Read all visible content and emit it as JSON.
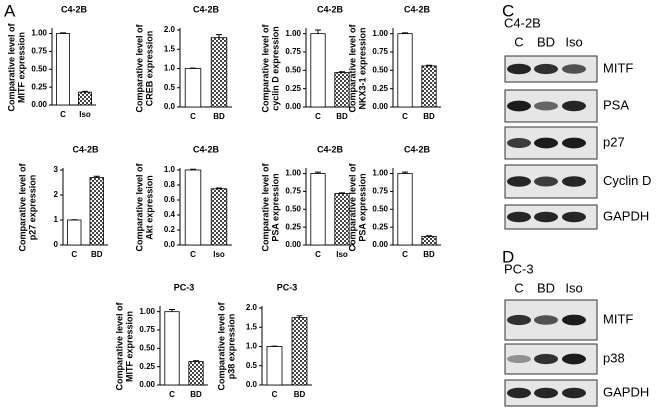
{
  "panels": [
    "A",
    "C",
    "D"
  ],
  "chart_data": [
    {
      "type": "bar",
      "title": "C4-2B",
      "ylabel": [
        "Comparative level of",
        "MITF expression"
      ],
      "categories": [
        "C",
        "Iso"
      ],
      "values": [
        1.0,
        0.18
      ],
      "errors": [
        0.01,
        0.01
      ],
      "colors": [
        "#ffffff",
        "#444444"
      ],
      "ylim": [
        0,
        1.05
      ],
      "yticks": [
        {
          "value": 0,
          "label": "0.00"
        },
        {
          "value": 0.25,
          "label": "0.25"
        },
        {
          "value": 0.5,
          "label": "0.50"
        },
        {
          "value": 0.75,
          "label": "0.75"
        },
        {
          "value": 1,
          "label": "1.00"
        }
      ]
    },
    {
      "type": "bar",
      "title": "C4-2B",
      "ylabel": [
        "Comparative level of",
        "CREB expression"
      ],
      "categories": [
        "C",
        "BD"
      ],
      "values": [
        1.0,
        1.8
      ],
      "errors": [
        0.01,
        0.08
      ],
      "colors": [
        "#ffffff",
        "#444444"
      ],
      "ylim": [
        0,
        2.0
      ],
      "yticks": [
        {
          "value": 0,
          "label": "0.0"
        },
        {
          "value": 0.5,
          "label": "0.5"
        },
        {
          "value": 1,
          "label": "1.0"
        },
        {
          "value": 1.5,
          "label": "1.5"
        },
        {
          "value": 2,
          "label": "2.0"
        }
      ]
    },
    {
      "type": "bar",
      "title": "C4-2B",
      "ylabel": [
        "Comparative level of",
        "cyclin D expression"
      ],
      "categories": [
        "C",
        "BD"
      ],
      "values": [
        1.0,
        0.47
      ],
      "errors": [
        0.05,
        0.01
      ],
      "colors": [
        "#ffffff",
        "#444444"
      ],
      "ylim": [
        0,
        1.05
      ],
      "yticks": [
        {
          "value": 0,
          "label": "0.00"
        },
        {
          "value": 0.25,
          "label": "0.25"
        },
        {
          "value": 0.5,
          "label": "0.50"
        },
        {
          "value": 0.75,
          "label": "0.75"
        },
        {
          "value": 1,
          "label": "1.00"
        }
      ]
    },
    {
      "type": "bar",
      "title": "C4-2B",
      "ylabel": [
        "Comparative level of",
        "NKX3-1 expression"
      ],
      "categories": [
        "C",
        "BD"
      ],
      "values": [
        1.0,
        0.56
      ],
      "errors": [
        0.01,
        0.01
      ],
      "colors": [
        "#ffffff",
        "#444444"
      ],
      "ylim": [
        0,
        1.05
      ],
      "yticks": [
        {
          "value": 0,
          "label": "0.00"
        },
        {
          "value": 0.25,
          "label": "0.25"
        },
        {
          "value": 0.5,
          "label": "0.50"
        },
        {
          "value": 0.75,
          "label": "0.75"
        },
        {
          "value": 1,
          "label": "1.00"
        }
      ]
    },
    {
      "type": "bar",
      "title": "C4-2B",
      "ylabel": [
        "Comparative level of",
        "p27 expression"
      ],
      "categories": [
        "C",
        "BD"
      ],
      "values": [
        1.0,
        2.7
      ],
      "errors": [
        0.01,
        0.05
      ],
      "colors": [
        "#ffffff",
        "#444444"
      ],
      "ylim": [
        0,
        3
      ],
      "yticks": [
        0,
        1,
        2,
        3
      ]
    },
    {
      "type": "bar",
      "title": "C4-2B",
      "ylabel": [
        "Comparative level of",
        "Akt expression"
      ],
      "categories": [
        "C",
        "Iso"
      ],
      "values": [
        1.0,
        0.75
      ],
      "errors": [
        0.01,
        0.01
      ],
      "colors": [
        "#ffffff",
        "#444444"
      ],
      "ylim": [
        0,
        1.0
      ],
      "yticks": [
        {
          "value": 0,
          "label": "0.0"
        },
        0.2,
        0.4,
        0.6,
        0.8,
        {
          "value": 1,
          "label": "1.0"
        }
      ]
    },
    {
      "type": "bar",
      "title": "C4-2B",
      "ylabel": [
        "Comparative level of",
        "PSA expression"
      ],
      "categories": [
        "C",
        "Iso"
      ],
      "values": [
        1.0,
        0.72
      ],
      "errors": [
        0.02,
        0.01
      ],
      "colors": [
        "#ffffff",
        "#444444"
      ],
      "ylim": [
        0,
        1.05
      ],
      "yticks": [
        {
          "value": 0,
          "label": "0.00"
        },
        {
          "value": 0.25,
          "label": "0.25"
        },
        {
          "value": 0.5,
          "label": "0.50"
        },
        {
          "value": 0.75,
          "label": "0.75"
        },
        {
          "value": 1,
          "label": "1.00"
        }
      ]
    },
    {
      "type": "bar",
      "title": "C4-2B",
      "ylabel": [
        "Comparative level of",
        "PSA expression"
      ],
      "categories": [
        "C",
        "BD"
      ],
      "values": [
        1.0,
        0.12
      ],
      "errors": [
        0.02,
        0.01
      ],
      "colors": [
        "#ffffff",
        "#444444"
      ],
      "ylim": [
        0,
        1.05
      ],
      "yticks": [
        {
          "value": 0,
          "label": "0.00"
        },
        {
          "value": 0.25,
          "label": "0.25"
        },
        {
          "value": 0.5,
          "label": "0.50"
        },
        {
          "value": 0.75,
          "label": "0.75"
        },
        {
          "value": 1,
          "label": "1.00"
        }
      ]
    },
    {
      "type": "bar",
      "title": "PC-3",
      "ylabel": [
        "Comparative level of",
        "MITF expression"
      ],
      "categories": [
        "C",
        "BD"
      ],
      "values": [
        1.0,
        0.32
      ],
      "errors": [
        0.03,
        0.01
      ],
      "colors": [
        "#ffffff",
        "#444444"
      ],
      "ylim": [
        0,
        1.05
      ],
      "yticks": [
        {
          "value": 0,
          "label": "0.00"
        },
        {
          "value": 0.25,
          "label": "0.25"
        },
        {
          "value": 0.5,
          "label": "0.50"
        },
        {
          "value": 0.75,
          "label": "0.75"
        },
        {
          "value": 1,
          "label": "1.00"
        }
      ]
    },
    {
      "type": "bar",
      "title": "PC-3",
      "ylabel": [
        "Comparative level of",
        "p38 expression"
      ],
      "categories": [
        "C",
        "BD"
      ],
      "values": [
        1.0,
        1.75
      ],
      "errors": [
        0.01,
        0.05
      ],
      "colors": [
        "#ffffff",
        "#444444"
      ],
      "ylim": [
        0,
        2.0
      ],
      "yticks": [
        {
          "value": 0,
          "label": "0.0"
        },
        {
          "value": 0.5,
          "label": "0.5"
        },
        {
          "value": 1,
          "label": "1.0"
        },
        {
          "value": 1.5,
          "label": "1.5"
        },
        {
          "value": 2,
          "label": "2.0"
        }
      ]
    }
  ],
  "blots": [
    {
      "title": "C4-2B",
      "lanes": [
        "C",
        "BD",
        "Iso"
      ],
      "rows": [
        "MITF",
        "PSA",
        "p27",
        "Cyclin D",
        "GAPDH"
      ]
    },
    {
      "title": "PC-3",
      "lanes": [
        "C",
        "BD",
        "Iso"
      ],
      "rows": [
        "MITF",
        "p38",
        "GAPDH"
      ]
    }
  ]
}
